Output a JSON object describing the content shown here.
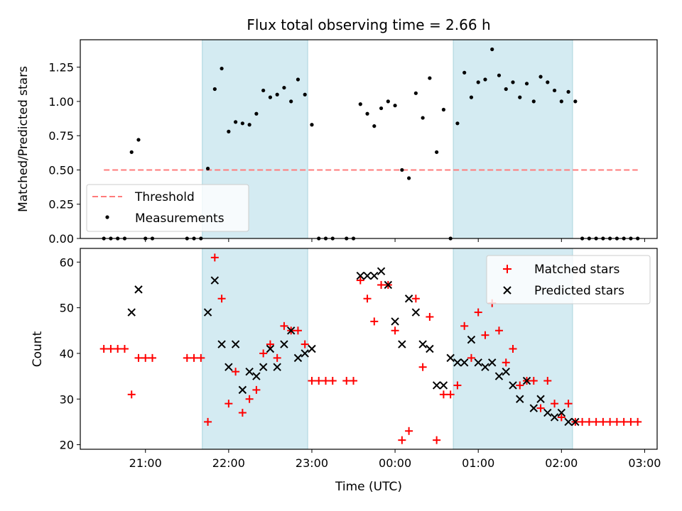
{
  "chart_data": [
    {
      "type": "scatter",
      "title": "Flux total observing time = 2.66 h",
      "xlabel": "",
      "ylabel": "Matched/Predicted stars",
      "xlim": [
        "20:13",
        "03:09"
      ],
      "ylim": [
        0,
        1.45
      ],
      "yticks": [
        0.0,
        0.25,
        0.5,
        0.75,
        1.0,
        1.25
      ],
      "ytick_labels": [
        "0.00",
        "0.25",
        "0.50",
        "0.75",
        "1.00",
        "1.25"
      ],
      "shaded_spans": [
        [
          "21:41",
          "22:57"
        ],
        [
          "00:42",
          "02:08"
        ]
      ],
      "shade_color": "#d4ebf2",
      "legend": {
        "placement": "lower-left",
        "entries": [
          "Threshold",
          "Measurements"
        ]
      },
      "series": [
        {
          "name": "Threshold",
          "style": "dashed-line",
          "color": "#ff7b7b",
          "x": [
            "20:30",
            "02:55"
          ],
          "y": [
            0.5,
            0.5
          ]
        },
        {
          "name": "Measurements",
          "style": "dot",
          "color": "#000000",
          "x": [
            "20:30",
            "20:35",
            "20:40",
            "20:45",
            "20:50",
            "20:55",
            "21:00",
            "21:05",
            "21:30",
            "21:35",
            "21:40",
            "21:45",
            "21:50",
            "21:55",
            "22:00",
            "22:05",
            "22:10",
            "22:15",
            "22:20",
            "22:25",
            "22:30",
            "22:35",
            "22:40",
            "22:45",
            "22:50",
            "22:55",
            "23:00",
            "23:05",
            "23:10",
            "23:15",
            "23:25",
            "23:30",
            "23:35",
            "23:40",
            "23:45",
            "23:50",
            "23:55",
            "00:00",
            "00:05",
            "00:10",
            "00:15",
            "00:20",
            "00:25",
            "00:30",
            "00:35",
            "00:40",
            "00:45",
            "00:50",
            "00:55",
            "01:00",
            "01:05",
            "01:10",
            "01:15",
            "01:20",
            "01:25",
            "01:30",
            "01:35",
            "01:40",
            "01:45",
            "01:50",
            "01:55",
            "02:00",
            "02:05",
            "02:10",
            "02:15",
            "02:20",
            "02:25",
            "02:30",
            "02:35",
            "02:40",
            "02:45",
            "02:50",
            "02:55"
          ],
          "y": [
            0,
            0,
            0,
            0,
            0.63,
            0.72,
            0,
            0,
            0,
            0,
            0,
            0.51,
            1.09,
            1.24,
            0.78,
            0.85,
            0.84,
            0.83,
            0.91,
            1.08,
            1.03,
            1.05,
            1.1,
            1.0,
            1.16,
            1.05,
            0.83,
            0,
            0,
            0,
            0,
            0,
            0.98,
            0.91,
            0.82,
            0.95,
            1.0,
            0.97,
            0.5,
            0.44,
            1.06,
            0.88,
            1.17,
            0.63,
            0.94,
            0,
            0.84,
            1.21,
            1.03,
            1.14,
            1.16,
            1.38,
            1.19,
            1.09,
            1.14,
            1.03,
            1.13,
            1.0,
            1.18,
            1.14,
            1.08,
            1.0,
            1.07,
            1.0,
            0,
            0,
            0,
            0,
            0,
            0,
            0,
            0,
            0
          ]
        }
      ]
    },
    {
      "type": "scatter",
      "title": "",
      "xlabel": "Time (UTC)",
      "ylabel": "Count",
      "xlim": [
        "20:13",
        "03:09"
      ],
      "ylim": [
        19,
        63
      ],
      "yticks": [
        20,
        30,
        40,
        50,
        60
      ],
      "ytick_labels": [
        "20",
        "30",
        "40",
        "50",
        "60"
      ],
      "xticks": [
        "21:00",
        "22:00",
        "23:00",
        "00:00",
        "01:00",
        "02:00",
        "03:00"
      ],
      "shaded_spans": [
        [
          "21:41",
          "22:57"
        ],
        [
          "00:42",
          "02:08"
        ]
      ],
      "shade_color": "#d4ebf2",
      "legend": {
        "placement": "upper-right",
        "entries": [
          "Matched stars",
          "Predicted stars"
        ]
      },
      "series": [
        {
          "name": "Matched stars",
          "marker": "plus",
          "color": "#ff0000",
          "x": [
            "20:30",
            "20:35",
            "20:40",
            "20:45",
            "20:50",
            "20:55",
            "21:00",
            "21:05",
            "21:30",
            "21:35",
            "21:40",
            "21:45",
            "21:50",
            "21:55",
            "22:00",
            "22:05",
            "22:10",
            "22:15",
            "22:20",
            "22:25",
            "22:30",
            "22:35",
            "22:40",
            "22:45",
            "22:50",
            "22:55",
            "23:00",
            "23:05",
            "23:10",
            "23:15",
            "23:25",
            "23:30",
            "23:35",
            "23:40",
            "23:45",
            "23:50",
            "23:55",
            "00:00",
            "00:05",
            "00:10",
            "00:15",
            "00:20",
            "00:25",
            "00:30",
            "00:35",
            "00:40",
            "00:45",
            "00:50",
            "00:55",
            "01:00",
            "01:05",
            "01:10",
            "01:15",
            "01:20",
            "01:25",
            "01:30",
            "01:35",
            "01:40",
            "01:45",
            "01:50",
            "01:55",
            "02:00",
            "02:05",
            "02:10",
            "02:15",
            "02:20",
            "02:25",
            "02:30",
            "02:35",
            "02:40",
            "02:45",
            "02:50",
            "02:55"
          ],
          "y": [
            41,
            41,
            41,
            41,
            31,
            39,
            39,
            39,
            39,
            39,
            39,
            25,
            61,
            52,
            29,
            36,
            27,
            30,
            32,
            40,
            42,
            39,
            46,
            45,
            45,
            42,
            34,
            34,
            34,
            34,
            34,
            34,
            56,
            52,
            47,
            55,
            55,
            45,
            21,
            23,
            52,
            37,
            48,
            21,
            31,
            31,
            33,
            46,
            39,
            49,
            44,
            51,
            45,
            38,
            41,
            33,
            34,
            34,
            28,
            34,
            29,
            26,
            29,
            25,
            25,
            25,
            25,
            25,
            25,
            25,
            25,
            25,
            25
          ]
        },
        {
          "name": "Predicted stars",
          "marker": "x",
          "color": "#000000",
          "x": [
            "20:50",
            "20:55",
            "21:45",
            "21:50",
            "21:55",
            "22:00",
            "22:05",
            "22:10",
            "22:15",
            "22:20",
            "22:25",
            "22:30",
            "22:35",
            "22:40",
            "22:45",
            "22:50",
            "22:55",
            "23:00",
            "23:35",
            "23:40",
            "23:45",
            "23:50",
            "23:55",
            "00:00",
            "00:05",
            "00:10",
            "00:15",
            "00:20",
            "00:25",
            "00:30",
            "00:35",
            "00:40",
            "00:45",
            "00:50",
            "00:55",
            "01:00",
            "01:05",
            "01:10",
            "01:15",
            "01:20",
            "01:25",
            "01:30",
            "01:35",
            "01:40",
            "01:45",
            "01:50",
            "01:55",
            "02:00",
            "02:05",
            "02:10"
          ],
          "y": [
            49,
            54,
            49,
            56,
            42,
            37,
            42,
            32,
            36,
            35,
            37,
            41,
            37,
            42,
            45,
            39,
            40,
            41,
            57,
            57,
            57,
            58,
            55,
            47,
            42,
            52,
            49,
            42,
            41,
            33,
            33,
            39,
            38,
            38,
            43,
            38,
            37,
            38,
            35,
            36,
            33,
            30,
            34,
            28,
            30,
            27,
            26,
            27,
            25,
            25
          ]
        }
      ]
    }
  ]
}
